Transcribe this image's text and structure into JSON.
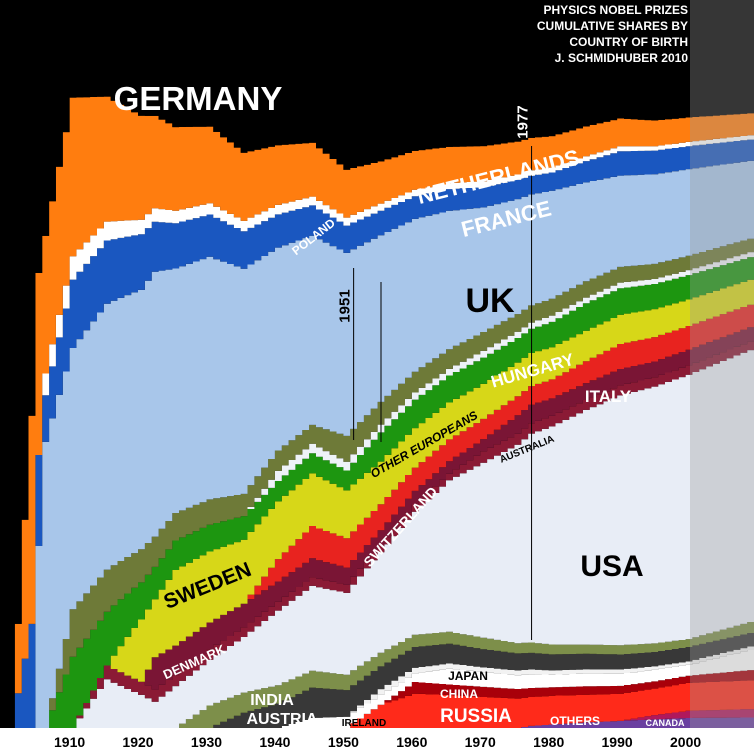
{
  "chart_data": {
    "type": "area",
    "stacking": "cumulative share, normalized to 100%",
    "title_lines": [
      "PHYSICS NOBEL PRIZES",
      "CUMULATIVE SHARES BY",
      "COUNTRY OF BIRTH",
      "J. SCHMIDHUBER 2010"
    ],
    "xlim": [
      1901,
      2010
    ],
    "ylim": [
      0,
      100
    ],
    "x_ticks": [
      "1910",
      "1920",
      "1930",
      "1940",
      "1950",
      "1960",
      "1970",
      "1980",
      "1990",
      "2000"
    ],
    "markers": [
      "1951",
      "1977"
    ],
    "grid": false,
    "legend": "none (labels drawn on areas)",
    "x": [
      1901,
      1904,
      1905,
      1906,
      1910,
      1915,
      1920,
      1922,
      1925,
      1930,
      1935,
      1940,
      1945,
      1950,
      1955,
      1960,
      1965,
      1970,
      1975,
      1977,
      1980,
      1985,
      1990,
      1995,
      2000,
      2010
    ],
    "series": [
      {
        "key": "others",
        "name": "OTHERS",
        "color": "#6a3fa0",
        "values": [
          0,
          0,
          0,
          0,
          0,
          0,
          0,
          0,
          0,
          0,
          0,
          0,
          0,
          0,
          0,
          0,
          0,
          0,
          0,
          0.3,
          0.5,
          0.8,
          1.0,
          1.2,
          1.4,
          1.5
        ]
      },
      {
        "key": "canada",
        "name": "CANADA",
        "color": "#b0185c",
        "values": [
          0,
          0,
          0,
          0,
          0,
          0,
          0,
          0,
          0,
          0,
          0,
          0,
          0,
          0,
          0,
          0,
          0,
          0,
          0,
          0,
          0,
          0,
          0,
          0.6,
          1.0,
          1.2
        ]
      },
      {
        "key": "russia",
        "name": "RUSSIA",
        "color": "#ff2a1a",
        "values": [
          0,
          0,
          0,
          0,
          0,
          0,
          0,
          0,
          0,
          0,
          0,
          0,
          0,
          0,
          3.6,
          5.3,
          5.0,
          4.6,
          4.3,
          4.2,
          4.1,
          3.9,
          3.8,
          3.7,
          3.9,
          4.1
        ]
      },
      {
        "key": "china",
        "name": "CHINA",
        "color": "#a8000a",
        "values": [
          0,
          0,
          0,
          0,
          0,
          0,
          0,
          0,
          0,
          0,
          0,
          0,
          0,
          0,
          0,
          1.8,
          1.6,
          1.5,
          1.4,
          1.3,
          1.2,
          1.2,
          1.1,
          1.0,
          1.0,
          1.5
        ]
      },
      {
        "key": "japan",
        "name": "JAPAN",
        "color": "#ffffff",
        "values": [
          0,
          0,
          0,
          0,
          0,
          0,
          0,
          0,
          0,
          0,
          0,
          0,
          1.5,
          1.7,
          1.5,
          1.3,
          2.4,
          2.2,
          2.0,
          2.0,
          1.8,
          1.8,
          1.7,
          1.6,
          1.5,
          3.0
        ]
      },
      {
        "key": "ireland",
        "name": "IRELAND",
        "color": "#f2f2f2",
        "values": [
          0,
          0,
          0,
          0,
          0,
          0,
          0,
          0,
          0,
          0,
          0,
          0,
          0,
          0,
          0.9,
          0.9,
          0.8,
          0.7,
          0.7,
          0.7,
          0.6,
          0.6,
          0.6,
          0.5,
          0.5,
          0.5
        ]
      },
      {
        "key": "austria",
        "name": "AUSTRIA",
        "color": "#383838",
        "values": [
          0,
          0,
          0,
          0,
          0,
          0,
          0,
          0,
          0,
          0,
          2.2,
          3.6,
          4.5,
          4.0,
          3.5,
          3.2,
          3.0,
          2.7,
          2.5,
          2.4,
          2.3,
          2.2,
          2.1,
          2.0,
          2.0,
          1.9
        ]
      },
      {
        "key": "india",
        "name": "INDIA",
        "color": "#7d8f4a",
        "values": [
          0,
          0,
          0,
          0,
          0,
          0,
          0,
          0,
          0,
          3.2,
          2.9,
          2.7,
          2.5,
          2.3,
          2.1,
          1.9,
          1.8,
          1.7,
          1.5,
          1.5,
          1.4,
          1.3,
          1.3,
          1.2,
          1.1,
          1.6
        ]
      },
      {
        "key": "usa",
        "name": "USA",
        "color": "#e8edf6",
        "values": [
          0,
          0,
          0,
          0,
          0,
          6.7,
          5.0,
          3.9,
          6.1,
          6.5,
          8.0,
          11.0,
          12.6,
          12.3,
          15.5,
          19.0,
          23.0,
          26.0,
          29.0,
          30.3,
          31.1,
          33.2,
          35.0,
          35.8,
          36.9,
          38.7
        ]
      },
      {
        "key": "australia",
        "name": "AUSTRALIA",
        "color": "#8b1a35",
        "values": [
          0,
          0,
          0,
          0,
          0,
          1.9,
          2.0,
          1.8,
          1.6,
          1.5,
          1.4,
          1.3,
          1.3,
          1.2,
          1.1,
          1.1,
          1.0,
          1.7,
          1.6,
          1.5,
          1.5,
          1.4,
          1.4,
          1.3,
          1.3,
          1.2
        ]
      },
      {
        "key": "denmark",
        "name": "DENMARK",
        "color": "#7a1535",
        "values": [
          0,
          0,
          0,
          0,
          0,
          0,
          0,
          4.8,
          4.3,
          3.8,
          3.4,
          3.0,
          2.8,
          2.6,
          2.3,
          2.1,
          1.9,
          1.8,
          2.7,
          2.7,
          2.5,
          2.4,
          2.3,
          2.2,
          2.2,
          2.0
        ]
      },
      {
        "key": "switzerland",
        "name": "SWITZERLAND",
        "color": "#e8231f",
        "values": [
          0,
          0,
          0,
          0,
          0,
          0,
          0,
          0,
          0,
          0,
          0,
          3.3,
          4.8,
          4.4,
          4.0,
          3.6,
          3.3,
          3.0,
          2.8,
          2.7,
          2.7,
          3.1,
          3.5,
          3.4,
          3.3,
          3.2
        ]
      },
      {
        "key": "sweden",
        "name": "SWEDEN",
        "color": "#d7d718",
        "values": [
          0,
          0,
          0,
          0,
          0,
          0,
          9.4,
          8.6,
          11.0,
          10.1,
          9.2,
          8.5,
          7.8,
          7.2,
          6.6,
          6.1,
          5.6,
          5.2,
          4.9,
          4.8,
          4.6,
          4.3,
          4.1,
          3.9,
          3.7,
          3.5
        ]
      },
      {
        "key": "italy",
        "name": "ITALY",
        "color": "#1d9610",
        "values": [
          0,
          0,
          0,
          0,
          9.8,
          7.4,
          5.6,
          4.8,
          4.3,
          3.8,
          3.4,
          3.0,
          3.0,
          3.0,
          4.5,
          4.4,
          4.1,
          3.9,
          3.6,
          3.5,
          3.6,
          3.9,
          3.7,
          3.5,
          3.4,
          3.2
        ]
      },
      {
        "key": "other_eu",
        "name": "OTHER EUROPEANS",
        "color": "#eef2f8",
        "values": [
          0,
          0,
          0,
          0,
          0,
          0,
          0,
          0,
          0,
          0,
          0,
          1.5,
          1.4,
          1.3,
          1.2,
          1.1,
          1.0,
          1.0,
          0.9,
          0.9,
          0.9,
          0.8,
          0.8,
          0.7,
          0.7,
          0.7
        ]
      },
      {
        "key": "hungary",
        "name": "HUNGARY",
        "color": "#6e7a38",
        "values": [
          0,
          0,
          0,
          0,
          6.5,
          5.8,
          5.0,
          4.5,
          4.0,
          3.6,
          3.2,
          3.0,
          2.8,
          3.9,
          3.5,
          3.2,
          3.0,
          2.8,
          2.6,
          2.5,
          2.4,
          2.3,
          2.2,
          2.1,
          2.0,
          1.9
        ]
      },
      {
        "key": "uk",
        "name": "UK",
        "color": "#a8c6ea",
        "values": [
          0,
          0,
          25,
          39.3,
          35.9,
          36.6,
          39.2,
          39.3,
          35.6,
          34.5,
          32.4,
          29.9,
          28.1,
          27.5,
          25.7,
          23.6,
          21.0,
          18.5,
          16.8,
          16.1,
          15.4,
          14.0,
          12.8,
          12.5,
          12.1,
          10.9
        ]
      },
      {
        "key": "france",
        "name": "FRANCE",
        "color": "#1a57c0",
        "values": [
          0,
          14.3,
          12.5,
          6.4,
          9.4,
          8.7,
          8.4,
          7.4,
          6.6,
          6.0,
          5.4,
          4.9,
          4.5,
          4.1,
          3.8,
          3.5,
          3.3,
          3.0,
          2.8,
          2.7,
          2.6,
          3.0,
          3.4,
          3.3,
          3.2,
          3.0
        ]
      },
      {
        "key": "poland",
        "name": "POLAND",
        "color": "#ffffff",
        "values": [
          0,
          0,
          0,
          3.0,
          3.2,
          2.6,
          2.2,
          2.0,
          1.8,
          1.6,
          1.5,
          1.4,
          1.3,
          1.2,
          1.1,
          1.0,
          0.9,
          0.9,
          0.8,
          0.8,
          0.7,
          0.7,
          0.7,
          0.6,
          0.6,
          0.6
        ]
      },
      {
        "key": "netherlands",
        "name": "NETHERLANDS",
        "color": "#ff7d0f",
        "values": [
          0,
          28.6,
          25,
          18.9,
          21.8,
          17.2,
          15.7,
          13.7,
          12.2,
          10.9,
          9.8,
          8.8,
          8.0,
          7.2,
          6.5,
          6.0,
          5.5,
          5.2,
          4.8,
          4.7,
          4.5,
          4.2,
          3.9,
          3.6,
          3.4,
          3.1
        ]
      },
      {
        "key": "germany",
        "name": "GERMANY",
        "color": "#000000",
        "values": [
          100,
          57.1,
          37.5,
          32.4,
          13.4,
          13.3,
          17.5,
          17.2,
          18.5,
          18.0,
          22.0,
          21.4,
          21.2,
          25.5,
          24.9,
          23.3,
          22.3,
          21.7,
          20.7,
          20.0,
          19.4,
          17.9,
          16.6,
          16.8,
          16.4,
          16.0
        ]
      }
    ],
    "area_labels": {
      "GERMANY": "GERMANY",
      "NETHERLANDS": "NETHERLANDS",
      "FRANCE": "FRANCE",
      "POLAND": "POLAND",
      "UK": "UK",
      "HUNGARY": "HUNGARY",
      "ITALY": "ITALY",
      "OTHER_EUROPEANS": "OTHER EUROPEANS",
      "AUSTRALIA": "AUSTRALIA",
      "SWITZERLAND": "SWITZERLAND",
      "SWEDEN": "SWEDEN",
      "DENMARK": "DENMARK",
      "USA": "USA",
      "JAPAN": "JAPAN",
      "CHINA": "CHINA",
      "RUSSIA": "RUSSIA",
      "INDIA": "INDIA",
      "AUSTRIA": "AUSTRIA",
      "IRELAND": "IRELAND",
      "OTHERS": "OTHERS",
      "CANADA": "CANADA"
    }
  }
}
